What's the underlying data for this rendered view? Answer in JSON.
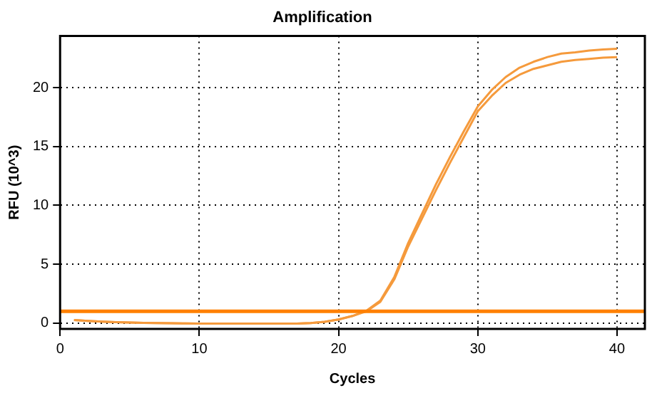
{
  "chart_data": {
    "type": "line",
    "title": "Amplification",
    "xlabel": "Cycles",
    "ylabel": "RFU (10^3)",
    "x": [
      1,
      2,
      3,
      4,
      5,
      6,
      7,
      8,
      9,
      10,
      11,
      12,
      13,
      14,
      15,
      16,
      17,
      18,
      19,
      20,
      21,
      22,
      23,
      24,
      25,
      26,
      27,
      28,
      29,
      30,
      31,
      32,
      33,
      34,
      35,
      36,
      37,
      38,
      39,
      40
    ],
    "series": [
      {
        "color": "#f59a3c",
        "values": [
          0.25,
          0.18,
          0.12,
          0.08,
          0.05,
          0.02,
          0,
          -0.02,
          -0.03,
          -0.05,
          -0.05,
          -0.05,
          -0.05,
          -0.05,
          -0.05,
          -0.05,
          -0.05,
          0,
          0.1,
          0.3,
          0.6,
          1.05,
          1.9,
          3.9,
          6.8,
          9.3,
          11.8,
          14.1,
          16.3,
          18.4,
          19.8,
          20.9,
          21.7,
          22.2,
          22.6,
          22.9,
          23,
          23.15,
          23.25,
          23.3
        ]
      },
      {
        "color": "#f59a3c",
        "values": [
          0.25,
          0.18,
          0.12,
          0.08,
          0.05,
          0.02,
          0,
          -0.02,
          -0.03,
          -0.05,
          -0.05,
          -0.05,
          -0.05,
          -0.05,
          -0.05,
          -0.05,
          -0.05,
          0,
          0.1,
          0.3,
          0.6,
          1,
          1.8,
          3.7,
          6.5,
          8.9,
          11.3,
          13.6,
          15.8,
          18,
          19.3,
          20.4,
          21.1,
          21.6,
          21.9,
          22.2,
          22.35,
          22.45,
          22.55,
          22.6
        ]
      }
    ],
    "ref_lines": [
      {
        "axis": "y",
        "value": 1,
        "color": "#ff8000"
      }
    ],
    "xlim": [
      0,
      42
    ],
    "xticks": [
      0,
      10,
      20,
      30,
      40
    ],
    "ylim": [
      -0.5,
      24.4
    ],
    "yticks": [
      0,
      5,
      10,
      15,
      20
    ],
    "grid": true,
    "legend": false,
    "marker": "none",
    "line_style": "solid"
  }
}
